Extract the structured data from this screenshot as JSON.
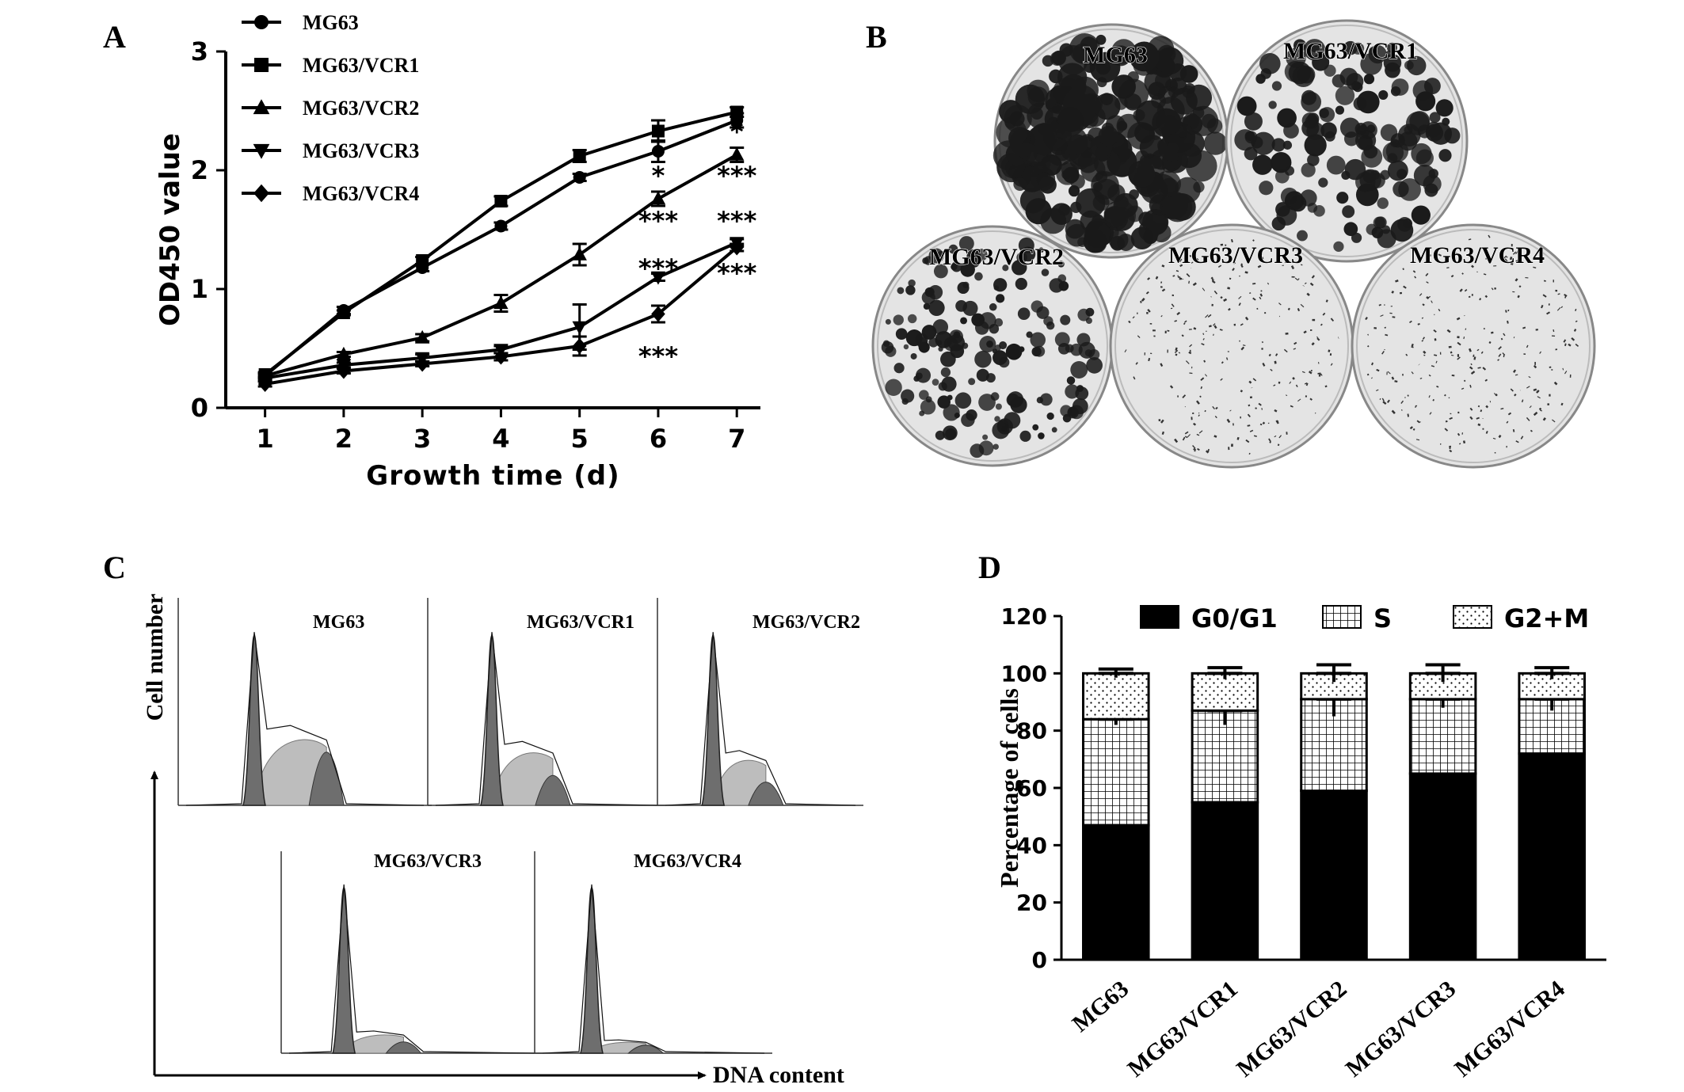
{
  "panels": {
    "a": "A",
    "b": "B",
    "c": "C",
    "d": "D"
  },
  "chart_data": [
    {
      "panel": "A",
      "type": "line",
      "xlabel": "Growth time (d)",
      "ylabel": "OD450 value",
      "x": [
        1,
        2,
        3,
        4,
        5,
        6,
        7
      ],
      "xlim": [
        0.5,
        7.3
      ],
      "ylim": [
        0,
        3
      ],
      "yticks": [
        0,
        1,
        2,
        3
      ],
      "legend_position": "top-left",
      "series": [
        {
          "name": "MG63",
          "marker": "circle",
          "values": [
            0.27,
            0.82,
            1.18,
            1.53,
            1.94,
            2.16,
            2.42
          ],
          "err": [
            0.02,
            0.03,
            0.03,
            0.03,
            0.03,
            0.09,
            0.06
          ]
        },
        {
          "name": "MG63/VCR1",
          "marker": "square",
          "values": [
            0.28,
            0.8,
            1.24,
            1.74,
            2.12,
            2.33,
            2.49
          ],
          "err": [
            0.02,
            0.02,
            0.03,
            0.04,
            0.05,
            0.09,
            0.04
          ]
        },
        {
          "name": "MG63/VCR2",
          "marker": "triangle-up",
          "values": [
            0.27,
            0.45,
            0.59,
            0.88,
            1.29,
            1.76,
            2.13
          ],
          "err": [
            0.02,
            0.02,
            0.03,
            0.07,
            0.09,
            0.06,
            0.06
          ]
        },
        {
          "name": "MG63/VCR3",
          "marker": "triangle-down",
          "values": [
            0.25,
            0.36,
            0.42,
            0.49,
            0.68,
            1.1,
            1.39
          ],
          "err": [
            0.02,
            0.02,
            0.03,
            0.03,
            0.19,
            0.03,
            0.03
          ]
        },
        {
          "name": "MG63/VCR4",
          "marker": "diamond",
          "values": [
            0.2,
            0.31,
            0.37,
            0.43,
            0.52,
            0.79,
            1.35
          ],
          "err": [
            0.02,
            0.02,
            0.02,
            0.03,
            0.08,
            0.07,
            0.03
          ]
        }
      ],
      "annotations": [
        {
          "x": 7,
          "y": 2.25,
          "text": "*"
        },
        {
          "x": 6,
          "y": 1.88,
          "text": "*"
        },
        {
          "x": 7,
          "y": 1.88,
          "text": "***"
        },
        {
          "x": 6,
          "y": 1.5,
          "text": "***"
        },
        {
          "x": 7,
          "y": 1.5,
          "text": "***"
        },
        {
          "x": 6,
          "y": 1.1,
          "text": "***"
        },
        {
          "x": 7,
          "y": 1.06,
          "text": "***"
        },
        {
          "x": 6,
          "y": 0.36,
          "text": "***"
        }
      ]
    },
    {
      "panel": "D",
      "type": "bar",
      "stacked": true,
      "ylabel": "Percentage of cells",
      "ylim": [
        0,
        120
      ],
      "yticks": [
        0,
        20,
        40,
        60,
        80,
        100,
        120
      ],
      "categories": [
        "MG63",
        "MG63/VCR1",
        "MG63/VCR2",
        "MG63/VCR3",
        "MG63/VCR4"
      ],
      "legend_position": "top",
      "series": [
        {
          "name": "G0/G1",
          "pattern": "solid",
          "values": [
            47,
            55,
            59,
            65,
            72
          ],
          "err": [
            2,
            2.5,
            4,
            10,
            1.5
          ]
        },
        {
          "name": "S",
          "pattern": "grid",
          "values": [
            37,
            32,
            32,
            26,
            19
          ],
          "err": [
            2,
            5,
            6,
            3,
            4
          ]
        },
        {
          "name": "G2+M",
          "pattern": "dots",
          "values": [
            16,
            13,
            9,
            9,
            9
          ],
          "err": [
            1.5,
            2,
            3,
            3,
            2
          ]
        }
      ]
    }
  ],
  "panel_b": {
    "dishes": [
      {
        "label": "MG63",
        "density": "high"
      },
      {
        "label": "MG63/VCR1",
        "density": "medium"
      },
      {
        "label": "MG63/VCR2",
        "density": "medium-low"
      },
      {
        "label": "MG63/VCR3",
        "density": "low"
      },
      {
        "label": "MG63/VCR4",
        "density": "low"
      }
    ]
  },
  "panel_c": {
    "ylabel": "Cell number",
    "xlabel": "DNA content",
    "histograms": [
      {
        "label": "MG63"
      },
      {
        "label": "MG63/VCR1"
      },
      {
        "label": "MG63/VCR2"
      },
      {
        "label": "MG63/VCR3"
      },
      {
        "label": "MG63/VCR4"
      }
    ]
  },
  "colors": {
    "ink": "#000000",
    "dish_bg": "#e4e4e4",
    "hist_fill": "#6e6e6e",
    "hist_light": "#bdbdbd"
  }
}
